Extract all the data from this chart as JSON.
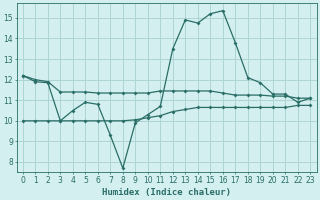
{
  "title": "",
  "xlabel": "Humidex (Indice chaleur)",
  "bg_color": "#d4efef",
  "grid_color": "#aed4d4",
  "line_color": "#2a6e68",
  "xlim": [
    -0.5,
    23.5
  ],
  "ylim": [
    7.5,
    15.7
  ],
  "yticks": [
    8,
    9,
    10,
    11,
    12,
    13,
    14,
    15
  ],
  "xticks": [
    0,
    1,
    2,
    3,
    4,
    5,
    6,
    7,
    8,
    9,
    10,
    11,
    12,
    13,
    14,
    15,
    16,
    17,
    18,
    19,
    20,
    21,
    22,
    23
  ],
  "line1_x": [
    0,
    1,
    2,
    3,
    4,
    5,
    6,
    7,
    8,
    9,
    10,
    11,
    12,
    13,
    14,
    15,
    16,
    17,
    18,
    19,
    20,
    21,
    22,
    23
  ],
  "line1_y": [
    12.2,
    11.9,
    11.85,
    10.0,
    10.5,
    10.9,
    10.8,
    9.3,
    7.7,
    9.9,
    10.3,
    10.7,
    13.5,
    14.9,
    14.75,
    15.2,
    15.35,
    13.8,
    12.1,
    11.85,
    11.3,
    11.3,
    10.9,
    11.1
  ],
  "line2_x": [
    0,
    1,
    2,
    3,
    4,
    5,
    6,
    7,
    8,
    9,
    10,
    11,
    12,
    13,
    14,
    15,
    16,
    17,
    18,
    19,
    20,
    21,
    22,
    23
  ],
  "line2_y": [
    12.2,
    12.0,
    11.9,
    11.4,
    11.4,
    11.4,
    11.35,
    11.35,
    11.35,
    11.35,
    11.35,
    11.45,
    11.45,
    11.45,
    11.45,
    11.45,
    11.35,
    11.25,
    11.25,
    11.25,
    11.2,
    11.2,
    11.1,
    11.1
  ],
  "line3_x": [
    0,
    1,
    2,
    3,
    4,
    5,
    6,
    7,
    8,
    9,
    10,
    11,
    12,
    13,
    14,
    15,
    16,
    17,
    18,
    19,
    20,
    21,
    22,
    23
  ],
  "line3_y": [
    10.0,
    10.0,
    10.0,
    10.0,
    10.0,
    10.0,
    10.0,
    10.0,
    10.0,
    10.05,
    10.15,
    10.25,
    10.45,
    10.55,
    10.65,
    10.65,
    10.65,
    10.65,
    10.65,
    10.65,
    10.65,
    10.65,
    10.75,
    10.75
  ]
}
